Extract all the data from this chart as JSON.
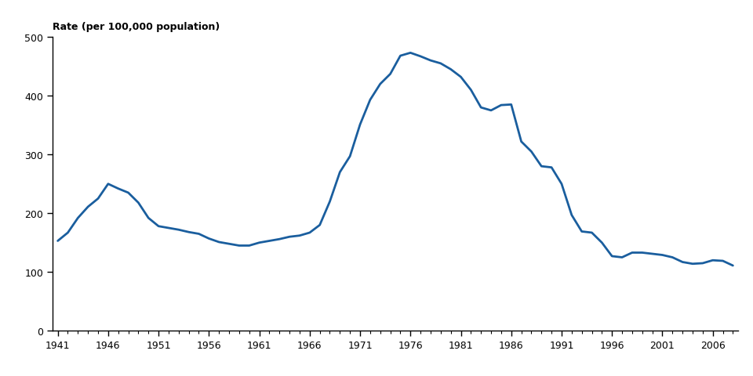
{
  "years": [
    1941,
    1942,
    1943,
    1944,
    1945,
    1946,
    1947,
    1948,
    1949,
    1950,
    1951,
    1952,
    1953,
    1954,
    1955,
    1956,
    1957,
    1958,
    1959,
    1960,
    1961,
    1962,
    1963,
    1964,
    1965,
    1966,
    1967,
    1968,
    1969,
    1970,
    1971,
    1972,
    1973,
    1974,
    1975,
    1976,
    1977,
    1978,
    1979,
    1980,
    1981,
    1982,
    1983,
    1984,
    1985,
    1986,
    1987,
    1988,
    1989,
    1990,
    1991,
    1992,
    1993,
    1994,
    1995,
    1996,
    1997,
    1998,
    1999,
    2000,
    2001,
    2002,
    2003,
    2004,
    2005,
    2006,
    2007,
    2008
  ],
  "rates": [
    153,
    167,
    192,
    211,
    225,
    250,
    242,
    235,
    218,
    192,
    178,
    175,
    172,
    168,
    165,
    157,
    151,
    148,
    145,
    145,
    150,
    153,
    156,
    160,
    162,
    167,
    180,
    220,
    270,
    297,
    351,
    393,
    420,
    437,
    468,
    473,
    467,
    460,
    455,
    445,
    432,
    410,
    380,
    375,
    384,
    385,
    322,
    305,
    280,
    278,
    250,
    197,
    169,
    167,
    150,
    127,
    125,
    133,
    133,
    131,
    129,
    125,
    117,
    114,
    115,
    120,
    119,
    111
  ],
  "line_color": "#1a5e9e",
  "line_width": 2.0,
  "ylabel": "Rate (per 100,000 population)",
  "ylim": [
    0,
    500
  ],
  "yticks": [
    0,
    100,
    200,
    300,
    400,
    500
  ],
  "xlim": [
    1941,
    2008
  ],
  "xticks": [
    1941,
    1946,
    1951,
    1956,
    1961,
    1966,
    1971,
    1976,
    1981,
    1986,
    1991,
    1996,
    2001,
    2006
  ],
  "bg_color": "#ffffff",
  "tick_color": "#000000",
  "spine_color": "#000000",
  "ylabel_fontsize": 9,
  "tick_fontsize": 9
}
